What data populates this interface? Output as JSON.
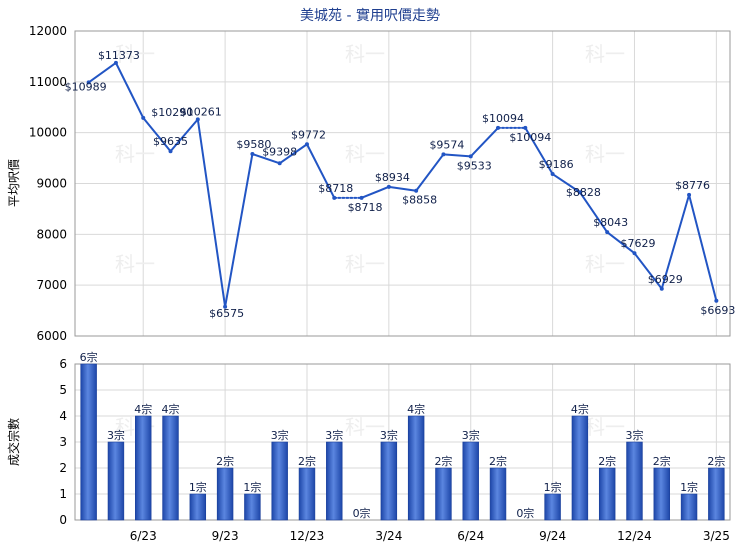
{
  "chart_data": [
    {
      "type": "line",
      "title": "美城苑 - 實用呎價走勢",
      "ylabel": "平均呎價",
      "ylim": [
        6000,
        12000
      ],
      "yticks": [
        6000,
        7000,
        8000,
        9000,
        10000,
        11000,
        12000
      ],
      "grid": true,
      "series": [
        {
          "values": [
            {
              "i": 0,
              "y": 10989,
              "label": "$10989"
            },
            {
              "i": 1,
              "y": 11373,
              "label": "$11373"
            },
            {
              "i": 2,
              "y": 10290,
              "label": "$10290"
            },
            {
              "i": 3,
              "y": 9635,
              "label": "$9635"
            },
            {
              "i": 4,
              "y": 10261,
              "label": "$10261"
            },
            {
              "i": 5,
              "y": 6575,
              "label": "$6575"
            },
            {
              "i": 6,
              "y": 9580,
              "label": "$9580"
            },
            {
              "i": 7,
              "y": 9398,
              "label": "$9398"
            },
            {
              "i": 8,
              "y": 9772,
              "label": "$9772"
            },
            {
              "i": 9,
              "y": 8718,
              "label": "$8718"
            },
            {
              "i": 10,
              "y": 8718,
              "label": "$8718",
              "interpolated": true
            },
            {
              "i": 11,
              "y": 8934,
              "label": "$8934"
            },
            {
              "i": 12,
              "y": 8858,
              "label": "$8858"
            },
            {
              "i": 13,
              "y": 9574,
              "label": "$9574"
            },
            {
              "i": 14,
              "y": 9533,
              "label": "$9533"
            },
            {
              "i": 15,
              "y": 10094,
              "label": "$10094"
            },
            {
              "i": 16,
              "y": 10094,
              "label": "$10094",
              "interpolated": true
            },
            {
              "i": 17,
              "y": 9186,
              "label": "$9186"
            },
            {
              "i": 18,
              "y": 8828,
              "label": "$8828"
            },
            {
              "i": 19,
              "y": 8043,
              "label": "$8043"
            },
            {
              "i": 20,
              "y": 7629,
              "label": "$7629"
            },
            {
              "i": 21,
              "y": 6929,
              "label": "$6929"
            },
            {
              "i": 22,
              "y": 8776,
              "label": "$8776"
            },
            {
              "i": 23,
              "y": 6693,
              "label": "$6693"
            }
          ],
          "color": "#2255c4"
        }
      ]
    },
    {
      "type": "bar",
      "ylabel": "成交宗數",
      "ylim": [
        0,
        6
      ],
      "yticks": [
        0,
        1,
        2,
        3,
        4,
        5,
        6
      ],
      "grid": true,
      "values": [
        6,
        3,
        4,
        4,
        1,
        2,
        1,
        3,
        2,
        3,
        0,
        3,
        4,
        2,
        3,
        2,
        0,
        1,
        4,
        2,
        3,
        2,
        1,
        2
      ],
      "labels": [
        "6宗",
        "3宗",
        "4宗",
        "4宗",
        "1宗",
        "2宗",
        "1宗",
        "3宗",
        "2宗",
        "3宗",
        "0宗",
        "3宗",
        "4宗",
        "2宗",
        "3宗",
        "2宗",
        "0宗",
        "1宗",
        "4宗",
        "2宗",
        "3宗",
        "2宗",
        "1宗",
        "2宗"
      ],
      "color": "#2d5fc9"
    }
  ],
  "x_axis": {
    "tick_labels": [
      {
        "i": 2,
        "label": "6/23"
      },
      {
        "i": 5,
        "label": "9/23"
      },
      {
        "i": 8,
        "label": "12/23"
      },
      {
        "i": 11,
        "label": "3/24"
      },
      {
        "i": 14,
        "label": "6/24"
      },
      {
        "i": 17,
        "label": "9/24"
      },
      {
        "i": 20,
        "label": "12/24"
      },
      {
        "i": 23,
        "label": "3/25"
      }
    ]
  },
  "watermark": "科一"
}
